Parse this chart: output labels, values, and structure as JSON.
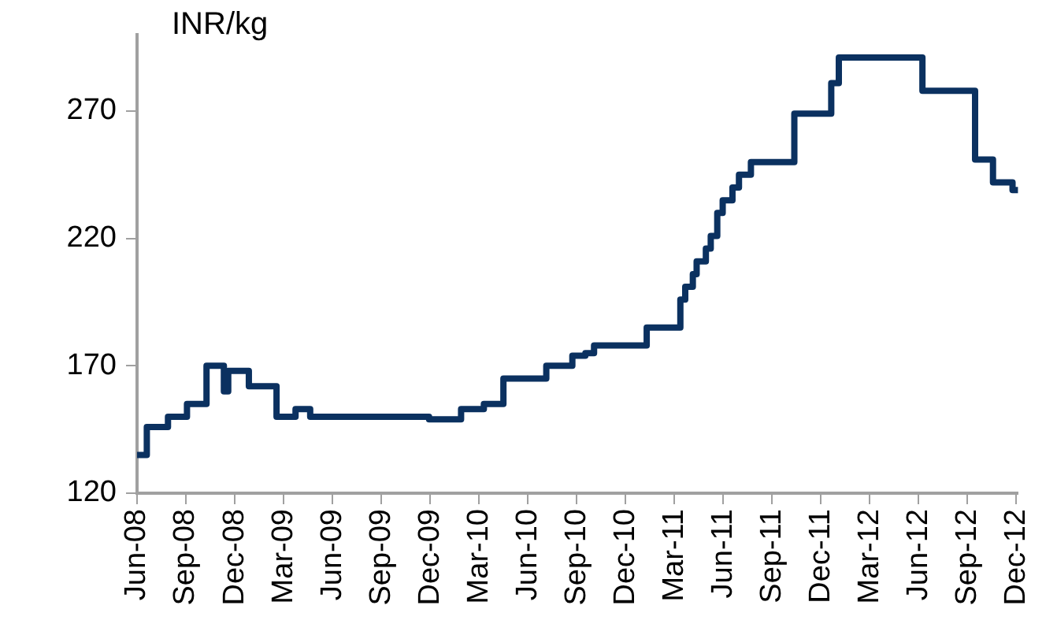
{
  "chart_data": {
    "type": "step",
    "ylabel": "INR/kg",
    "x": [
      "2008-06-01",
      "2008-06-19",
      "2008-07-28",
      "2008-09-03",
      "2008-10-09",
      "2008-11-11",
      "2008-11-19",
      "2008-12-27",
      "2009-02-18",
      "2009-03-23",
      "2009-04-20",
      "2009-11-29",
      "2010-01-28",
      "2010-03-10",
      "2010-04-16",
      "2010-07-05",
      "2010-08-23",
      "2010-09-17",
      "2010-10-03",
      "2011-01-10",
      "2011-03-12",
      "2011-03-21",
      "2011-04-05",
      "2011-04-12",
      "2011-04-29",
      "2011-05-08",
      "2011-05-20",
      "2011-05-30",
      "2011-06-18",
      "2011-06-30",
      "2011-07-22",
      "2011-10-12",
      "2011-12-20",
      "2012-01-04",
      "2012-06-08",
      "2012-09-15",
      "2012-10-18",
      "2012-11-24",
      "2012-12-04"
    ],
    "series": [
      {
        "color": "#0b3160",
        "values": [
          135,
          146,
          150,
          155,
          170,
          160,
          168,
          162,
          150,
          153,
          150,
          149,
          153,
          155,
          165,
          170,
          174,
          175,
          178,
          185,
          196,
          201,
          206,
          211,
          216,
          221,
          230,
          235,
          240,
          245,
          250,
          269,
          281,
          291,
          278,
          251,
          242,
          239,
          239
        ]
      }
    ],
    "xlim": [
      "2008-06-01",
      "2012-12-04"
    ],
    "xticks": [
      {
        "value": "2008-06",
        "label": "Jun-08"
      },
      {
        "value": "2008-09",
        "label": "Sep-08"
      },
      {
        "value": "2008-12",
        "label": "Dec-08"
      },
      {
        "value": "2009-03",
        "label": "Mar-09"
      },
      {
        "value": "2009-06",
        "label": "Jun-09"
      },
      {
        "value": "2009-09",
        "label": "Sep-09"
      },
      {
        "value": "2009-12",
        "label": "Dec-09"
      },
      {
        "value": "2010-03",
        "label": "Mar-10"
      },
      {
        "value": "2010-06",
        "label": "Jun-10"
      },
      {
        "value": "2010-09",
        "label": "Sep-10"
      },
      {
        "value": "2010-12",
        "label": "Dec-10"
      },
      {
        "value": "2011-03",
        "label": "Mar-11"
      },
      {
        "value": "2011-06",
        "label": "Jun-11"
      },
      {
        "value": "2011-09",
        "label": "Sep-11"
      },
      {
        "value": "2011-12",
        "label": "Dec-11"
      },
      {
        "value": "2012-03",
        "label": "Mar-12"
      },
      {
        "value": "2012-06",
        "label": "Jun-12"
      },
      {
        "value": "2012-09",
        "label": "Sep-12"
      },
      {
        "value": "2012-12",
        "label": "Dec-12"
      }
    ],
    "ylim": [
      120,
      300
    ],
    "yticks": [
      120,
      170,
      220,
      270
    ],
    "grid": false,
    "legend": false,
    "marker": "none",
    "line_style": "solid"
  }
}
